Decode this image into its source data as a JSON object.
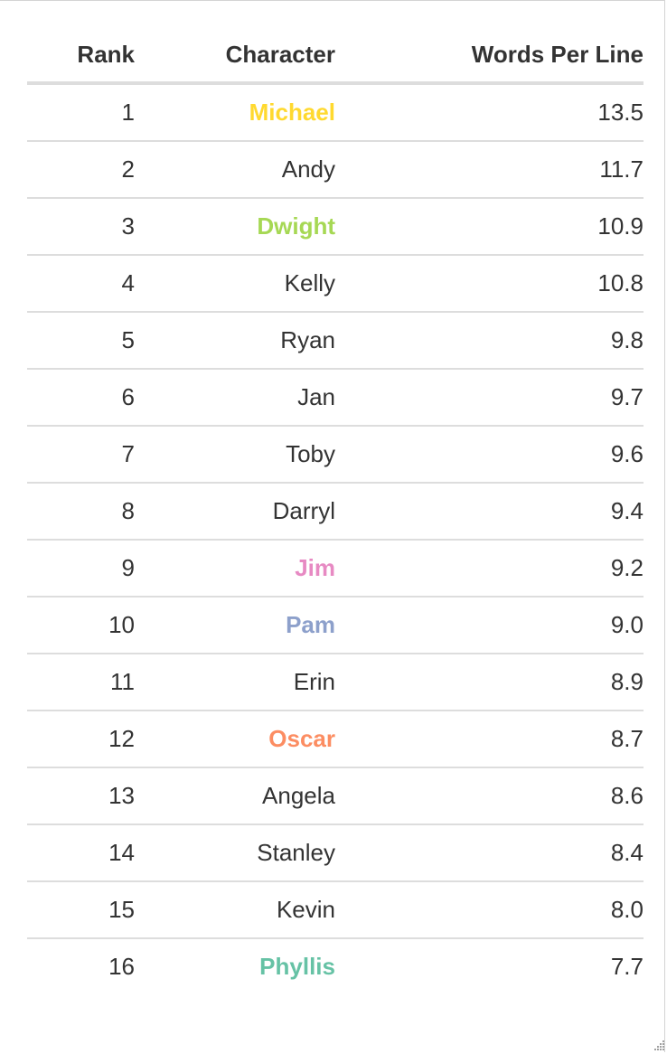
{
  "table": {
    "headers": {
      "rank": "Rank",
      "character": "Character",
      "words_per_line": "Words Per Line"
    },
    "rows": [
      {
        "rank": "1",
        "character": "Michael",
        "words_per_line": "13.5",
        "color": "#FFD92F"
      },
      {
        "rank": "2",
        "character": "Andy",
        "words_per_line": "11.7",
        "color": ""
      },
      {
        "rank": "3",
        "character": "Dwight",
        "words_per_line": "10.9",
        "color": "#A6D854"
      },
      {
        "rank": "4",
        "character": "Kelly",
        "words_per_line": "10.8",
        "color": ""
      },
      {
        "rank": "5",
        "character": "Ryan",
        "words_per_line": "9.8",
        "color": ""
      },
      {
        "rank": "6",
        "character": "Jan",
        "words_per_line": "9.7",
        "color": ""
      },
      {
        "rank": "7",
        "character": "Toby",
        "words_per_line": "9.6",
        "color": ""
      },
      {
        "rank": "8",
        "character": "Darryl",
        "words_per_line": "9.4",
        "color": ""
      },
      {
        "rank": "9",
        "character": "Jim",
        "words_per_line": "9.2",
        "color": "#E78AC3"
      },
      {
        "rank": "10",
        "character": "Pam",
        "words_per_line": "9.0",
        "color": "#8DA0CB"
      },
      {
        "rank": "11",
        "character": "Erin",
        "words_per_line": "8.9",
        "color": ""
      },
      {
        "rank": "12",
        "character": "Oscar",
        "words_per_line": "8.7",
        "color": "#FC8D62"
      },
      {
        "rank": "13",
        "character": "Angela",
        "words_per_line": "8.6",
        "color": ""
      },
      {
        "rank": "14",
        "character": "Stanley",
        "words_per_line": "8.4",
        "color": ""
      },
      {
        "rank": "15",
        "character": "Kevin",
        "words_per_line": "8.0",
        "color": ""
      },
      {
        "rank": "16",
        "character": "Phyllis",
        "words_per_line": "7.7",
        "color": "#66C2A5"
      }
    ]
  },
  "colors": {
    "text": "#333333",
    "rule": "#DDDDDD",
    "frame": "#D4D4D4"
  },
  "icons": {
    "resize_grip": "resize-grip-icon"
  }
}
